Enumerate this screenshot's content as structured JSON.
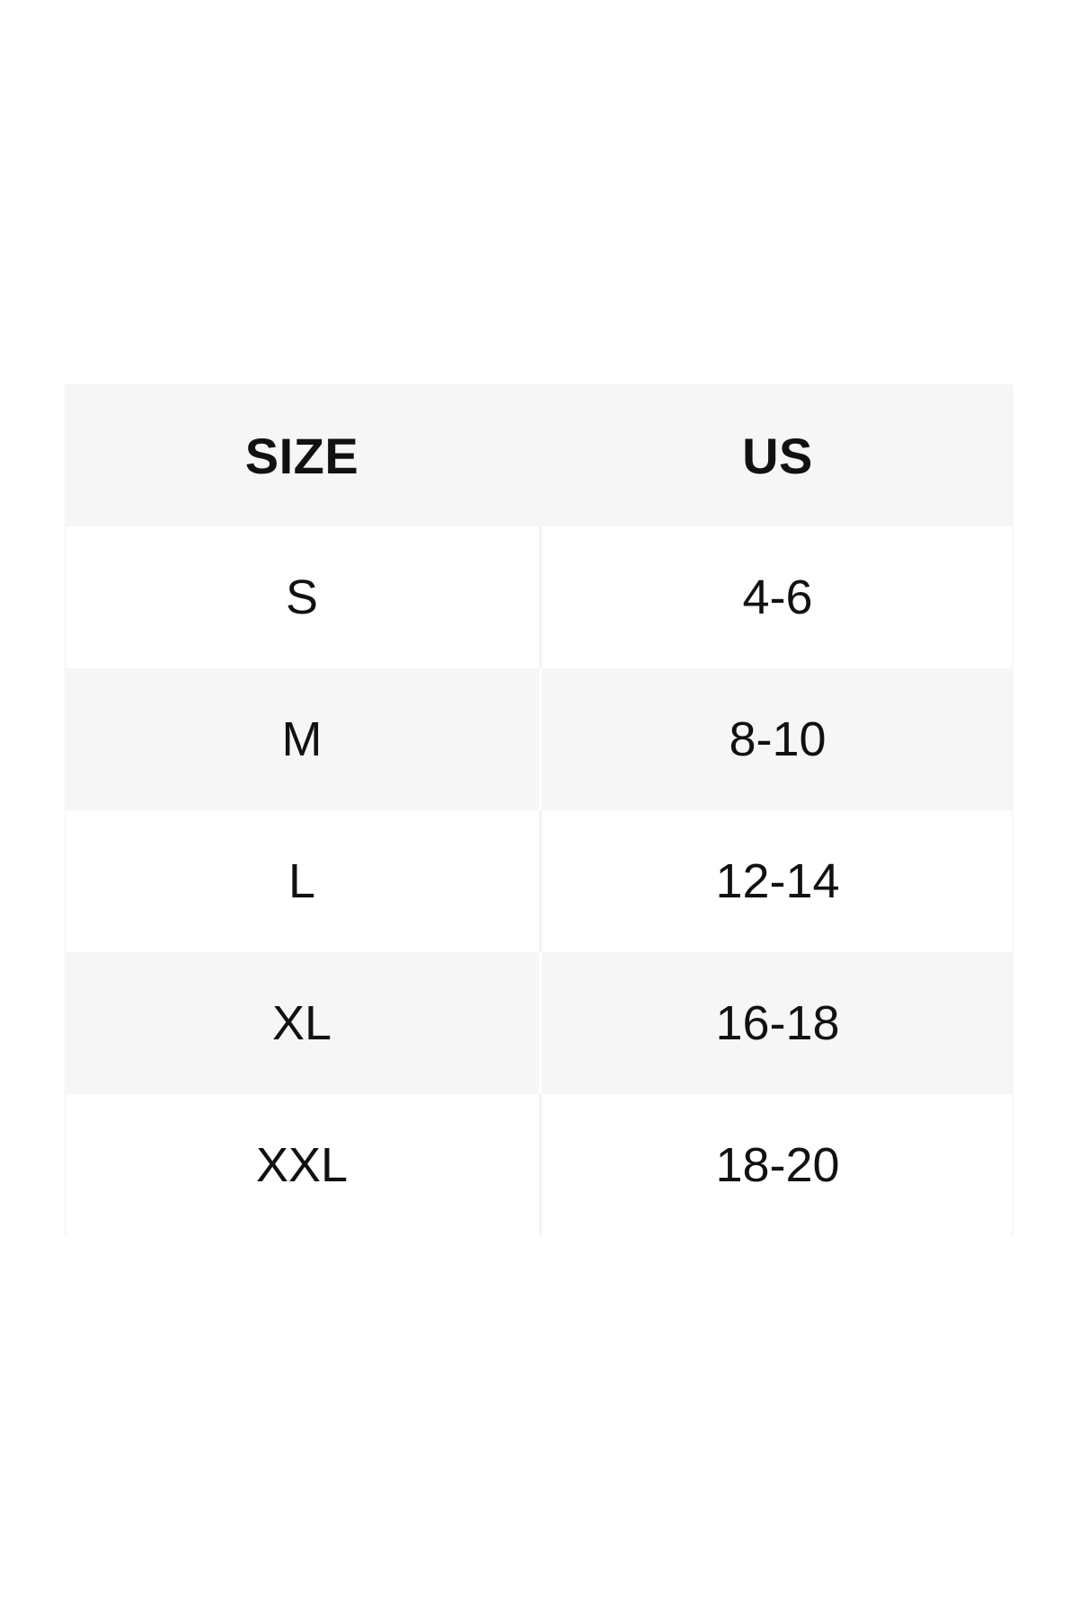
{
  "page": {
    "background_color": "#ffffff",
    "text_color": "#111111"
  },
  "size_chart": {
    "colors": {
      "header_bg": "#f6f6f6",
      "row_bg": "#ffffff",
      "row_alt_bg": "#f6f6f6",
      "divider_on_gray": "#ffffff",
      "divider_on_white": "#f2f2f2"
    },
    "header": {
      "size_label": "SIZE",
      "us_label": "US"
    },
    "rows": [
      {
        "size": "S",
        "us": "4-6"
      },
      {
        "size": "M",
        "us": "8-10"
      },
      {
        "size": "L",
        "us": "12-14"
      },
      {
        "size": "XL",
        "us": "16-18"
      },
      {
        "size": "XXL",
        "us": "18-20"
      }
    ]
  },
  "chart_data": {
    "type": "table",
    "title": "",
    "columns": [
      "SIZE",
      "US"
    ],
    "rows": [
      [
        "S",
        "4-6"
      ],
      [
        "M",
        "8-10"
      ],
      [
        "L",
        "12-14"
      ],
      [
        "XL",
        "16-18"
      ],
      [
        "XXL",
        "18-20"
      ]
    ]
  }
}
